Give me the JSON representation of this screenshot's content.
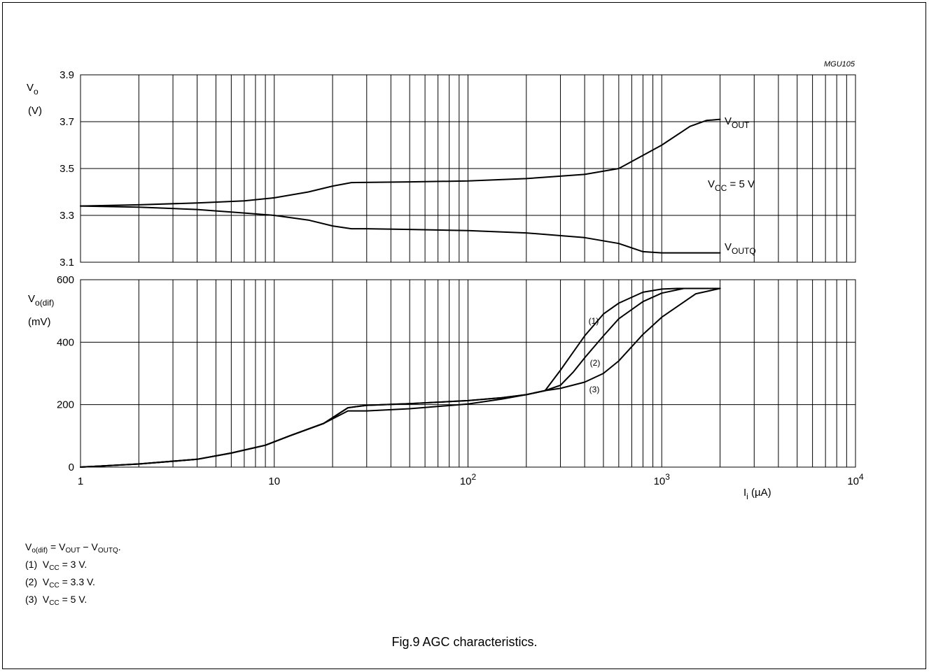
{
  "figure": {
    "code": "MGU105",
    "caption": "Fig.9  AGC characteristics."
  },
  "notes": [
    {
      "marker": "",
      "lhs": "V",
      "lhs_sub": "o(dif)",
      "eq": " = V",
      "a_sub": "OUT",
      "minus": " − V",
      "b_sub": "OUTQ",
      "tail": "."
    },
    {
      "marker": "(1)",
      "text": "V",
      "sub": "CC",
      "value": " = 3 V."
    },
    {
      "marker": "(2)",
      "text": "V",
      "sub": "CC",
      "value": " = 3.3 V."
    },
    {
      "marker": "(3)",
      "text": "V",
      "sub": "CC",
      "value": " = 5 V."
    }
  ],
  "chart_data": [
    {
      "type": "line",
      "x_scale": "log",
      "xlim": [
        1,
        10000
      ],
      "ylim": [
        3.1,
        3.9
      ],
      "yticks": [
        "3.1",
        "3.3",
        "3.5",
        "3.7",
        "3.9"
      ],
      "ylabel": "V",
      "ylabel_sub": "o",
      "yunit": "(V)",
      "annotation": {
        "text": "V",
        "sub": "CC",
        "value": " = 5 V"
      },
      "series": [
        {
          "name": "V",
          "name_sub": "OUT",
          "x": [
            1,
            2,
            4,
            7,
            10,
            15,
            20,
            25,
            50,
            100,
            200,
            400,
            600,
            1000,
            1400,
            1700,
            2000
          ],
          "y": [
            3.34,
            3.345,
            3.353,
            3.362,
            3.375,
            3.4,
            3.425,
            3.44,
            3.443,
            3.447,
            3.457,
            3.475,
            3.5,
            3.6,
            3.68,
            3.705,
            3.71
          ]
        },
        {
          "name": "V",
          "name_sub": "OUTQ",
          "x": [
            1,
            2,
            4,
            7,
            10,
            15,
            20,
            25,
            30,
            50,
            100,
            200,
            400,
            600,
            800,
            1000,
            2000
          ],
          "y": [
            3.34,
            3.335,
            3.325,
            3.31,
            3.3,
            3.28,
            3.255,
            3.243,
            3.243,
            3.24,
            3.235,
            3.225,
            3.205,
            3.18,
            3.145,
            3.14,
            3.14
          ]
        }
      ]
    },
    {
      "type": "line",
      "x_scale": "log",
      "xlim": [
        1,
        10000
      ],
      "ylim": [
        0,
        600
      ],
      "yticks": [
        "0",
        "200",
        "400",
        "600"
      ],
      "xticks": [
        {
          "base": "1",
          "exp": ""
        },
        {
          "base": "10",
          "exp": ""
        },
        {
          "base": "10",
          "exp": "2"
        },
        {
          "base": "10",
          "exp": "3"
        },
        {
          "base": "10",
          "exp": "4"
        }
      ],
      "xlabel": "I",
      "xlabel_sub": "i",
      "xunit": " (µA)",
      "ylabel": "V",
      "ylabel_sub": "o(dif)",
      "yunit": "(mV)",
      "series": [
        {
          "name": "(1)",
          "x": [
            1,
            2,
            4,
            6,
            9,
            12,
            18,
            24,
            30,
            50,
            100,
            150,
            200,
            250,
            300,
            400,
            500,
            600,
            800,
            1000,
            1200,
            2000
          ],
          "y": [
            0,
            10,
            25,
            45,
            70,
            100,
            140,
            190,
            198,
            203,
            213,
            222,
            232,
            245,
            310,
            420,
            490,
            525,
            560,
            570,
            572,
            572
          ]
        },
        {
          "name": "(2)",
          "x": [
            1,
            2,
            4,
            6,
            9,
            12,
            18,
            24,
            30,
            50,
            100,
            150,
            200,
            250,
            300,
            350,
            400,
            500,
            600,
            800,
            1000,
            1300,
            2000
          ],
          "y": [
            0,
            10,
            25,
            45,
            70,
            100,
            140,
            190,
            198,
            203,
            213,
            222,
            232,
            245,
            262,
            305,
            350,
            420,
            475,
            530,
            557,
            572,
            572
          ]
        },
        {
          "name": "(3)",
          "x": [
            1,
            2,
            4,
            6,
            9,
            12,
            18,
            24,
            30,
            50,
            100,
            150,
            200,
            250,
            300,
            400,
            500,
            600,
            800,
            1000,
            1500,
            2000
          ],
          "y": [
            0,
            10,
            25,
            45,
            70,
            100,
            140,
            180,
            180,
            187,
            202,
            218,
            232,
            245,
            252,
            272,
            300,
            340,
            425,
            480,
            555,
            572
          ]
        }
      ]
    }
  ]
}
